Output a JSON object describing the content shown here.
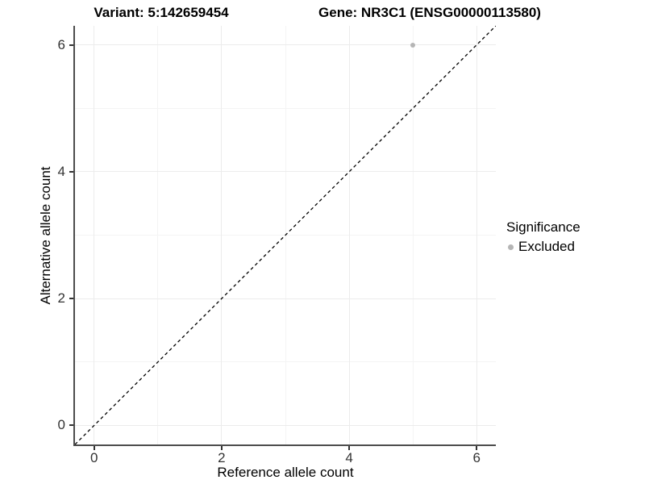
{
  "chart_data": {
    "type": "scatter",
    "title_left": "Variant: 5:142659454",
    "title_right": "Gene: NR3C1 (ENSG00000113580)",
    "xlabel": "Reference allele count",
    "ylabel": "Alternative allele count",
    "xlim": [
      -0.3,
      6.3
    ],
    "ylim": [
      -0.3,
      6.3
    ],
    "x_ticks": [
      0,
      2,
      4,
      6
    ],
    "y_ticks": [
      0,
      2,
      4,
      6
    ],
    "x_minor_ticks": [
      1,
      3,
      5
    ],
    "y_minor_ticks": [
      1,
      3,
      5
    ],
    "grid": true,
    "reference_line": {
      "slope": 1,
      "intercept": 0,
      "style": "dashed",
      "color": "#000000"
    },
    "series": [
      {
        "name": "Excluded",
        "color": "#b5b5b5",
        "points": [
          {
            "x": 5,
            "y": 6
          }
        ]
      }
    ],
    "legend": {
      "title": "Significance",
      "position": "right",
      "items": [
        {
          "label": "Excluded",
          "color": "#b5b5b5"
        }
      ]
    },
    "colors": {
      "background": "#ffffff",
      "grid_major": "#ececec",
      "grid_minor": "#f4f4f4",
      "axis_line": "#4d4d4d",
      "tick_mark": "#333333",
      "tick_text": "#333333",
      "point": "#b5b5b5"
    }
  }
}
